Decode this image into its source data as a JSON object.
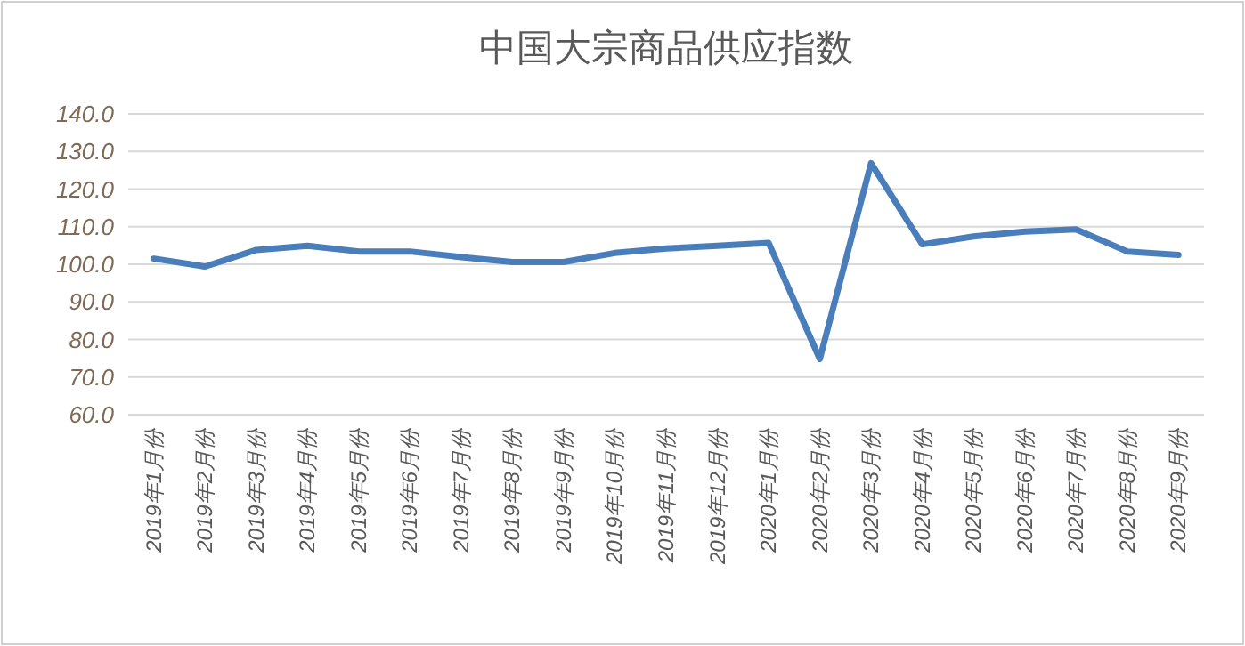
{
  "chart_data": {
    "type": "line",
    "title": "中国大宗商品供应指数",
    "categories": [
      "2019年1月份",
      "2019年2月份",
      "2019年3月份",
      "2019年4月份",
      "2019年5月份",
      "2019年6月份",
      "2019年7月份",
      "2019年8月份",
      "2019年9月份",
      "2019年10月份",
      "2019年11月份",
      "2019年12月份",
      "2020年1月份",
      "2020年2月份",
      "2020年3月份",
      "2020年4月份",
      "2020年5月份",
      "2020年6月份",
      "2020年7月份",
      "2020年8月份",
      "2020年9月份"
    ],
    "series": [
      {
        "color": "#4a7ebb",
        "values": [
          101.5,
          99.4,
          103.8,
          104.9,
          103.4,
          103.4,
          101.9,
          100.6,
          100.6,
          103.0,
          104.2,
          104.9,
          105.7,
          74.8,
          126.9,
          105.3,
          107.4,
          108.7,
          109.3,
          103.4,
          102.5
        ]
      }
    ],
    "ylim": [
      60,
      140
    ],
    "yticks": [
      {
        "value": 60,
        "label": "60.0"
      },
      {
        "value": 70,
        "label": "70.0"
      },
      {
        "value": 80,
        "label": "80.0"
      },
      {
        "value": 90,
        "label": "90.0"
      },
      {
        "value": 100,
        "label": "100.0"
      },
      {
        "value": 110,
        "label": "110.0"
      },
      {
        "value": 120,
        "label": "120.0"
      },
      {
        "value": 130,
        "label": "130.0"
      },
      {
        "value": 140,
        "label": "140.0"
      }
    ],
    "grid": "y",
    "marker": "none",
    "line_style": "solid"
  }
}
